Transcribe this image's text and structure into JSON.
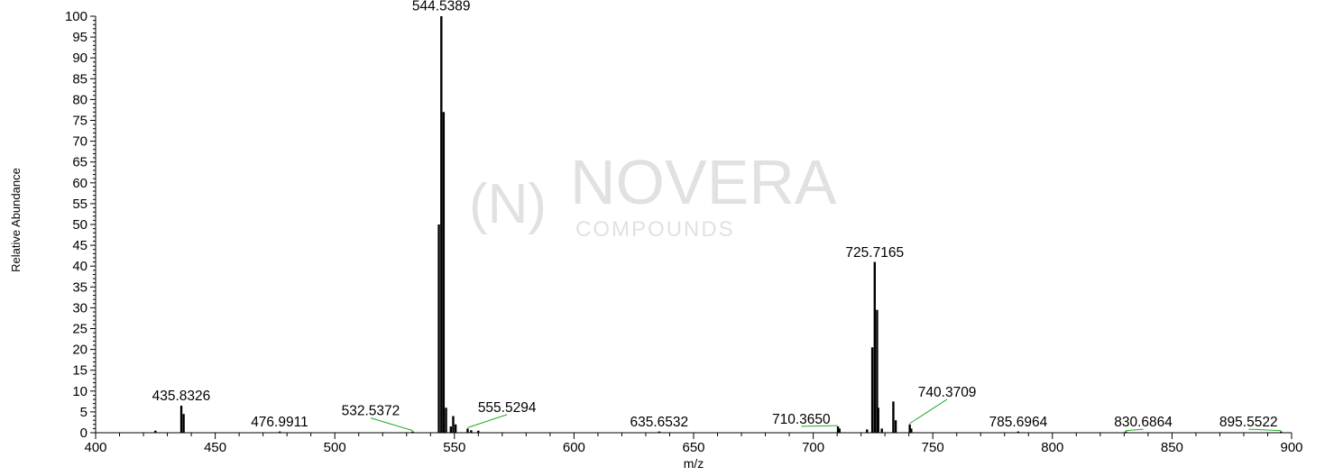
{
  "chart_data": {
    "type": "bar",
    "header_text": "",
    "xlabel": "m/z",
    "ylabel": "Relative Abundance",
    "xlim": [
      400,
      900
    ],
    "ylim": [
      0,
      100
    ],
    "x_ticks": [
      400,
      450,
      500,
      550,
      600,
      650,
      700,
      750,
      800,
      850,
      900
    ],
    "y_ticks": [
      0,
      5,
      10,
      15,
      20,
      25,
      30,
      35,
      40,
      45,
      50,
      55,
      60,
      65,
      70,
      75,
      80,
      85,
      90,
      95,
      100
    ],
    "grid": false,
    "peaks": [
      {
        "mz": 425.0,
        "intensity": 0.5
      },
      {
        "mz": 435.8326,
        "intensity": 6.5,
        "label": "435.8326"
      },
      {
        "mz": 436.8,
        "intensity": 4.5
      },
      {
        "mz": 476.9911,
        "intensity": 0.3,
        "label": "476.9911"
      },
      {
        "mz": 532.5372,
        "intensity": 0.3,
        "label": "532.5372"
      },
      {
        "mz": 543.5,
        "intensity": 50
      },
      {
        "mz": 544.5389,
        "intensity": 100,
        "label": "544.5389"
      },
      {
        "mz": 545.5,
        "intensity": 77
      },
      {
        "mz": 546.5,
        "intensity": 6
      },
      {
        "mz": 548.5,
        "intensity": 1.5
      },
      {
        "mz": 549.5,
        "intensity": 4
      },
      {
        "mz": 550.5,
        "intensity": 2
      },
      {
        "mz": 555.5294,
        "intensity": 1.0,
        "label": "555.5294"
      },
      {
        "mz": 557.0,
        "intensity": 0.6
      },
      {
        "mz": 560.0,
        "intensity": 0.5
      },
      {
        "mz": 635.6532,
        "intensity": 0.3,
        "label": "635.6532"
      },
      {
        "mz": 710.365,
        "intensity": 1.5,
        "label": "710.3650"
      },
      {
        "mz": 711.0,
        "intensity": 1.0
      },
      {
        "mz": 722.5,
        "intensity": 0.8
      },
      {
        "mz": 724.7,
        "intensity": 20.5
      },
      {
        "mz": 725.7165,
        "intensity": 41,
        "label": "725.7165"
      },
      {
        "mz": 726.7,
        "intensity": 29.5
      },
      {
        "mz": 727.2,
        "intensity": 6
      },
      {
        "mz": 728.7,
        "intensity": 1.0
      },
      {
        "mz": 733.5,
        "intensity": 7.5
      },
      {
        "mz": 734.5,
        "intensity": 3
      },
      {
        "mz": 740.3709,
        "intensity": 2.0,
        "label": "740.3709"
      },
      {
        "mz": 741.0,
        "intensity": 1.0
      },
      {
        "mz": 785.6964,
        "intensity": 0.3,
        "label": "785.6964"
      },
      {
        "mz": 830.6864,
        "intensity": 0.3,
        "label": "830.6864"
      },
      {
        "mz": 895.5522,
        "intensity": 0.3,
        "label": "895.5522"
      }
    ],
    "label_positions": [
      {
        "label": "435.8326",
        "text_mz": 435.8,
        "text_y": 7.8,
        "leader": false
      },
      {
        "label": "544.5389",
        "text_mz": 544.5,
        "text_y": 101.4,
        "leader": false
      },
      {
        "label": "476.9911",
        "text_mz": 476.9,
        "text_y": 1.5,
        "leader": false
      },
      {
        "label": "532.5372",
        "text_mz": 515.0,
        "text_y": 4.2,
        "leader": true
      },
      {
        "label": "555.5294",
        "text_mz": 572.0,
        "text_y": 5.0,
        "leader": true
      },
      {
        "label": "635.6532",
        "text_mz": 635.6,
        "text_y": 1.5,
        "leader": false
      },
      {
        "label": "710.3650",
        "text_mz": 695.0,
        "text_y": 2.2,
        "leader": true
      },
      {
        "label": "725.7165",
        "text_mz": 725.7,
        "text_y": 42.2,
        "leader": false
      },
      {
        "label": "740.3709",
        "text_mz": 756.0,
        "text_y": 8.7,
        "leader": true
      },
      {
        "label": "785.6964",
        "text_mz": 785.7,
        "text_y": 1.5,
        "leader": false
      },
      {
        "label": "830.6864",
        "text_mz": 838.0,
        "text_y": 1.5,
        "leader": true
      },
      {
        "label": "895.5522",
        "text_mz": 882.0,
        "text_y": 1.5,
        "leader": true
      }
    ],
    "colors": {
      "peak": "#000000",
      "label": "#000000",
      "leader": "#22aa22",
      "axis": "#000000"
    }
  },
  "watermark": {
    "brand_mark": "(N)",
    "brand": "NOVERA",
    "tagline": "COMPOUNDS",
    "color": "#bdbdbd"
  }
}
